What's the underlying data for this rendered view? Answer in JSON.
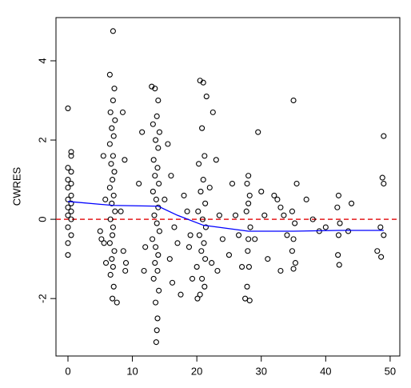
{
  "chart_data": {
    "type": "scatter",
    "ylabel": "CWRES",
    "xlim": [
      -1.86,
      51.5
    ],
    "ylim": [
      -3.45,
      5.09
    ],
    "xticks": [
      0,
      10,
      20,
      30,
      40,
      50
    ],
    "yticks": [
      -2,
      0,
      2,
      4
    ],
    "point_color": "#000000",
    "x": [
      0,
      0.5,
      0.5,
      0,
      0.5,
      0,
      0.5,
      0,
      0.5,
      0,
      0.5,
      0,
      0.5,
      0,
      0.5,
      0,
      0.5,
      0,
      0,
      7,
      6.5,
      7.2,
      7,
      6.6,
      7.3,
      6.8,
      7.1,
      6.5,
      7,
      6.7,
      7.2,
      6.9,
      6.5,
      7.1,
      6.8,
      7.3,
      6.6,
      7,
      6.9,
      6.5,
      7.2,
      6.8,
      7,
      6.6,
      7.1,
      6.9,
      7.6,
      5.5,
      5.8,
      5.2,
      5.6,
      5.9,
      5.0,
      8.5,
      8.8,
      8.2,
      8.6,
      8.9,
      9.0,
      13,
      13.5,
      14,
      13.8,
      13.2,
      14.2,
      13.6,
      14,
      13.3,
      13.9,
      13.5,
      14.1,
      13.2,
      13.7,
      14,
      13.4,
      13.8,
      14.2,
      13.1,
      13.6,
      14,
      13.5,
      13.9,
      13.3,
      14.1,
      13.6,
      13.9,
      13.8,
      13.7,
      11.5,
      11,
      12,
      11.8,
      15.5,
      16,
      15,
      16.5,
      17,
      15.8,
      16.2,
      17.5,
      18,
      18.5,
      19,
      18.8,
      19.3,
      20.5,
      21,
      21.5,
      20.8,
      21.2,
      20.3,
      21,
      20.6,
      21.3,
      20.2,
      20.9,
      21.4,
      20.4,
      21.1,
      20.7,
      21.3,
      20,
      20.8,
      21.2,
      20.5,
      20.1,
      22.5,
      23,
      22,
      23.5,
      24,
      22.3,
      23.2,
      25.5,
      26,
      26.5,
      25,
      27,
      28,
      27.8,
      28.2,
      28,
      27.7,
      28.3,
      28,
      27.9,
      28.1,
      27.8,
      27.5,
      28.2,
      29.5,
      30,
      30.5,
      29,
      31,
      32,
      32.5,
      33,
      33.5,
      34,
      33,
      35,
      35.5,
      34.8,
      35.2,
      35,
      34.8,
      35.3,
      35,
      37,
      38,
      39,
      40,
      42,
      41.8,
      42.2,
      42,
      41.9,
      42.1,
      44,
      43.5,
      49,
      48.8,
      49,
      48.5,
      49,
      48,
      48.6
    ],
    "y": [
      2.8,
      1.7,
      1.6,
      1.3,
      1.2,
      1.0,
      0.9,
      0.8,
      0.6,
      0.5,
      0.4,
      0.3,
      0.2,
      0.1,
      0,
      -0.2,
      -0.4,
      -0.6,
      -0.9,
      4.75,
      3.65,
      3.3,
      3.0,
      2.7,
      2.5,
      2.3,
      2.1,
      1.9,
      1.6,
      1.4,
      1.2,
      1.0,
      0.8,
      0.6,
      0.4,
      0.2,
      0,
      -0.2,
      -0.4,
      -0.6,
      -0.8,
      -1.0,
      -1.2,
      -1.4,
      -1.7,
      -2.0,
      -2.1,
      1.6,
      0.5,
      -0.5,
      -0.6,
      -1.1,
      -0.3,
      2.7,
      1.5,
      0.2,
      -0.8,
      -1.3,
      -1.1,
      3.35,
      3.3,
      3.0,
      2.6,
      2.4,
      2.2,
      2.0,
      1.8,
      1.5,
      1.3,
      1.1,
      0.9,
      0.7,
      0.5,
      0.3,
      0.1,
      -0.1,
      -0.3,
      -0.5,
      -0.7,
      -0.9,
      -1.1,
      -1.3,
      -1.5,
      -1.8,
      -2.1,
      -2.5,
      -2.8,
      -3.1,
      2.2,
      0.9,
      -0.7,
      -1.3,
      1.9,
      1.1,
      0.5,
      -0.2,
      -0.6,
      -1.0,
      -1.6,
      -1.9,
      0.6,
      0.2,
      -0.4,
      -0.7,
      -1.5,
      3.5,
      3.45,
      3.1,
      2.3,
      1.6,
      1.4,
      1.0,
      0.7,
      0.4,
      0.2,
      0,
      -0.2,
      -0.4,
      -0.6,
      -0.8,
      -1.0,
      -1.2,
      -1.5,
      -1.7,
      -1.9,
      -2.0,
      2.7,
      1.5,
      0.8,
      0.1,
      -0.5,
      -1.1,
      -1.3,
      0.9,
      0.1,
      -0.4,
      -0.9,
      -1.2,
      1.1,
      0.9,
      0.6,
      0.4,
      0.2,
      -0.2,
      -0.5,
      -0.8,
      -1.2,
      -1.7,
      -2.0,
      -2.05,
      2.2,
      0.7,
      0.1,
      -0.5,
      -1.0,
      0.6,
      0.5,
      0.3,
      0.1,
      -0.4,
      -1.3,
      3.0,
      0.9,
      0.2,
      -0.1,
      -0.5,
      -0.8,
      -1.1,
      -1.25,
      0.5,
      0,
      -0.3,
      -0.2,
      0.6,
      0.3,
      -0.1,
      -0.4,
      -0.9,
      -1.15,
      0.4,
      -0.3,
      2.1,
      1.05,
      0.9,
      -0.2,
      -0.4,
      -0.8,
      -0.95
    ],
    "smooth": {
      "color": "#0000ff",
      "x": [
        0,
        7,
        14,
        17,
        21,
        28,
        35,
        42,
        49
      ],
      "y": [
        0.45,
        0.35,
        0.33,
        0.1,
        -0.15,
        -0.3,
        -0.3,
        -0.28,
        -0.28
      ]
    },
    "hline": {
      "value": 0,
      "color": "#e41a1c"
    }
  }
}
